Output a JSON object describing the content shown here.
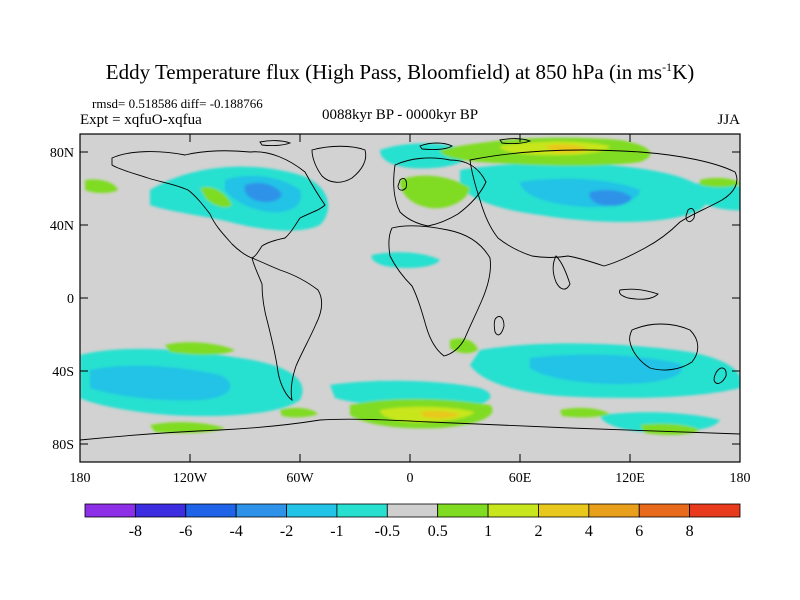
{
  "title_main": "Eddy Temperature flux (High Pass, Bloomfield) at 850 hPa (in ms",
  "title_sup": "-1",
  "title_end": "K)",
  "stats": "rmsd= 0.518586 diff= -0.188766",
  "experiment": "Expt = xqfuO-xqfua",
  "period": "0088kyr BP - 0000kyr BP",
  "season": "JJA",
  "lat_ticks": [
    "80N",
    "40N",
    "0",
    "40S",
    "80S"
  ],
  "lon_ticks": [
    "180",
    "120W",
    "60W",
    "0",
    "60E",
    "120E",
    "180"
  ],
  "colorbar": {
    "labels": [
      "-8",
      "-6",
      "-4",
      "-2",
      "-1",
      "-0.5",
      "0.5",
      "1",
      "2",
      "4",
      "6",
      "8"
    ],
    "colors": [
      "#8d2fe6",
      "#3d2de0",
      "#1e63e8",
      "#2e93e8",
      "#22c3e6",
      "#27e0d0",
      "#cfcfcf",
      "#7fdc22",
      "#c8e61e",
      "#e8c81c",
      "#e8a01c",
      "#e86a1c",
      "#e83a1c"
    ]
  },
  "map": {
    "background": "#d2d2d2",
    "coast_color": "#000000"
  }
}
